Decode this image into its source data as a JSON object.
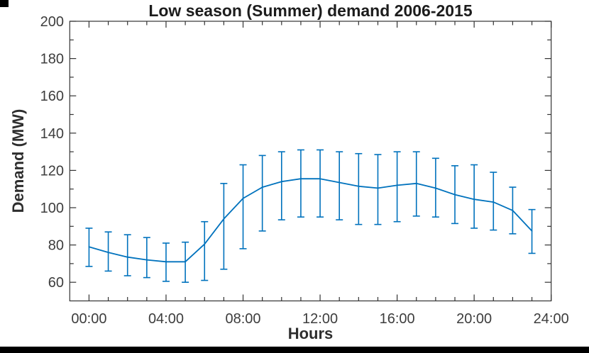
{
  "chart_data": {
    "type": "line",
    "subtype": "errorbar",
    "title": "Low season (Summer) demand 2006-2015",
    "xlabel": "Hours",
    "ylabel": "Demand (MW)",
    "x": [
      0,
      1,
      2,
      3,
      4,
      5,
      6,
      7,
      8,
      9,
      10,
      11,
      12,
      13,
      14,
      15,
      16,
      17,
      18,
      19,
      20,
      21,
      22,
      23
    ],
    "series": [
      {
        "name": "mean-demand-MW",
        "values": [
          79,
          76,
          73.5,
          72,
          71,
          71,
          80.5,
          94,
          105,
          111,
          114,
          115.5,
          115.5,
          113.5,
          111.5,
          110.5,
          112,
          113,
          110.5,
          107,
          104.5,
          103,
          98.5,
          87.5
        ]
      },
      {
        "name": "errorbar-upper-MW",
        "values": [
          89,
          87,
          85.5,
          84,
          81,
          81.5,
          92.5,
          113,
          123,
          128,
          130,
          131,
          131,
          130,
          129,
          128.5,
          130,
          130,
          126.5,
          122.5,
          123,
          119,
          111,
          99
        ]
      },
      {
        "name": "errorbar-lower-MW",
        "values": [
          68.5,
          66,
          63.5,
          62.5,
          60.5,
          60,
          61,
          67,
          78,
          87.5,
          93.5,
          95,
          95,
          93.5,
          91,
          91,
          92.5,
          95.5,
          95,
          91.5,
          89,
          88,
          86,
          75.5
        ]
      }
    ],
    "xlim": [
      -1,
      24
    ],
    "ylim": [
      50,
      200
    ],
    "xticks": {
      "positions": [
        0,
        4,
        8,
        12,
        16,
        20,
        24
      ],
      "labels": [
        "00:00",
        "04:00",
        "08:00",
        "12:00",
        "16:00",
        "20:00",
        "24:00"
      ]
    },
    "yticks": {
      "positions": [
        60,
        80,
        100,
        120,
        140,
        160,
        180,
        200
      ],
      "labels": [
        "60",
        "80",
        "100",
        "120",
        "140",
        "160",
        "180",
        "200"
      ]
    },
    "minor_x_tick_step_hours": 1,
    "minor_y_tick_step": 10,
    "grid": false,
    "legend": null,
    "box": true,
    "colors": {
      "line": "#0072BD",
      "errorbar": "#0072BD",
      "axis": "#333333",
      "tick_label": "#3d3d3d",
      "title": "#1c1c1c",
      "decor_black": "#000000"
    }
  }
}
